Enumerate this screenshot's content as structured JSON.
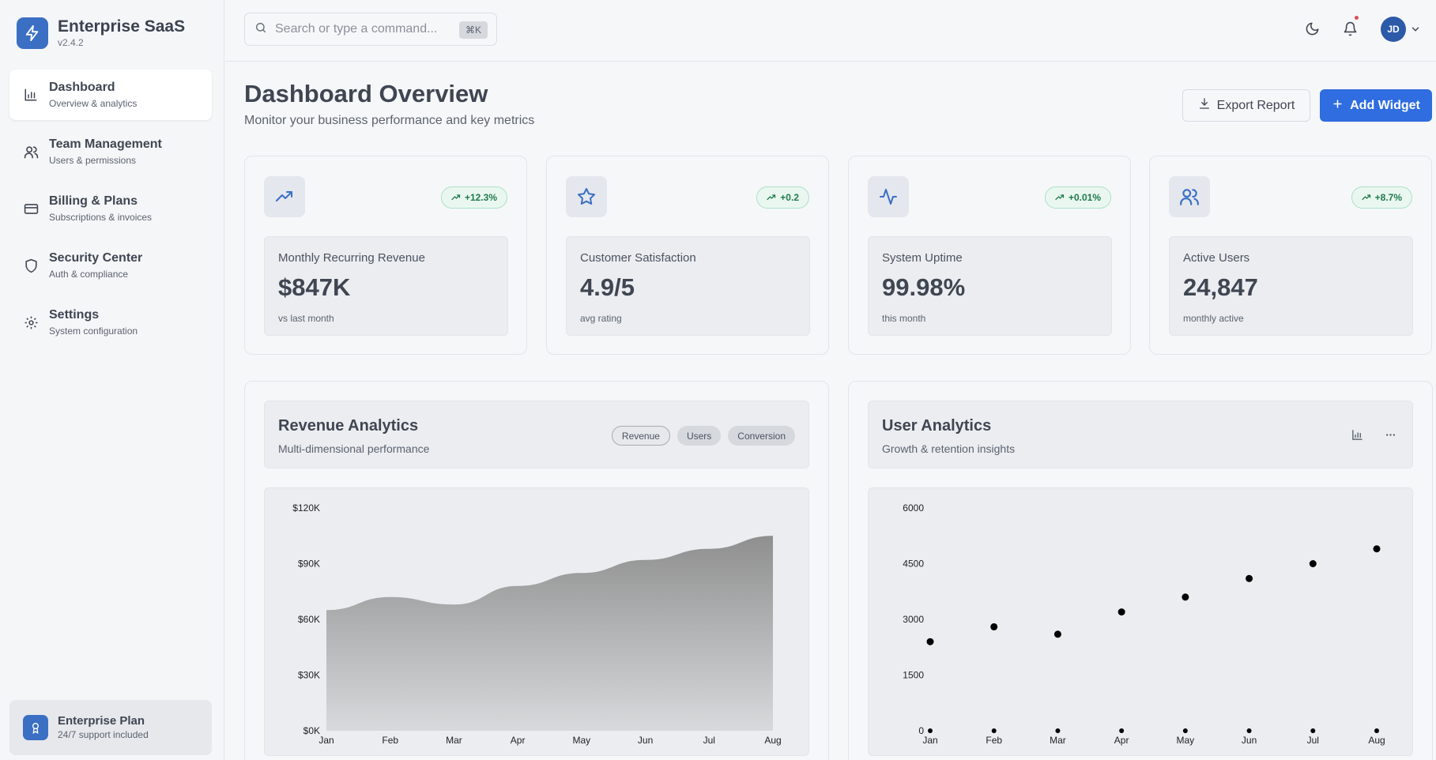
{
  "brand": {
    "name": "Enterprise SaaS",
    "version": "v2.4.2"
  },
  "sidebar": {
    "items": [
      {
        "label": "Dashboard",
        "sub": "Overview & analytics",
        "icon": "bar-chart-icon",
        "active": true
      },
      {
        "label": "Team Management",
        "sub": "Users & permissions",
        "icon": "users-icon"
      },
      {
        "label": "Billing & Plans",
        "sub": "Subscriptions & invoices",
        "icon": "credit-card-icon"
      },
      {
        "label": "Security Center",
        "sub": "Auth & compliance",
        "icon": "shield-icon"
      },
      {
        "label": "Settings",
        "sub": "System configuration",
        "icon": "gear-icon"
      }
    ],
    "plan": {
      "title": "Enterprise Plan",
      "sub": "24/7 support included"
    }
  },
  "topbar": {
    "search_placeholder": "Search or type a command...",
    "shortcut": "⌘K",
    "avatar_initials": "JD"
  },
  "header": {
    "title": "Dashboard Overview",
    "subtitle": "Monitor your business performance and key metrics",
    "export_label": "Export Report",
    "add_label": "Add Widget"
  },
  "metrics": [
    {
      "label": "Monthly Recurring Revenue",
      "value": "$847K",
      "note": "vs last month",
      "change": "+12.3%",
      "icon": "trending-up-icon"
    },
    {
      "label": "Customer Satisfaction",
      "value": "4.9/5",
      "note": "avg rating",
      "change": "+0.2",
      "icon": "star-icon"
    },
    {
      "label": "System Uptime",
      "value": "99.98%",
      "note": "this month",
      "change": "+0.01%",
      "icon": "activity-icon"
    },
    {
      "label": "Active Users",
      "value": "24,847",
      "note": "monthly active",
      "change": "+8.7%",
      "icon": "users-icon"
    }
  ],
  "revenue_panel": {
    "title": "Revenue Analytics",
    "subtitle": "Multi-dimensional performance",
    "pills": [
      "Revenue",
      "Users",
      "Conversion"
    ]
  },
  "users_panel": {
    "title": "User Analytics",
    "subtitle": "Growth & retention insights"
  },
  "chart_data": [
    {
      "type": "area",
      "categories": [
        "Jan",
        "Feb",
        "Mar",
        "Apr",
        "May",
        "Jun",
        "Jul",
        "Aug"
      ],
      "values": [
        65000,
        72000,
        68000,
        78000,
        85000,
        92000,
        98000,
        105000
      ],
      "ylim": [
        0,
        120000
      ],
      "yticks": [
        "$0K",
        "$30K",
        "$60K",
        "$90K",
        "$120K"
      ],
      "color": "#8a8a8a"
    },
    {
      "type": "scatter",
      "categories": [
        "Jan",
        "Feb",
        "Mar",
        "Apr",
        "May",
        "Jun",
        "Jul",
        "Aug"
      ],
      "series": [
        {
          "values": [
            2400,
            2800,
            2600,
            3200,
            3600,
            4100,
            4500,
            4900
          ]
        },
        {
          "values": [
            0,
            0,
            0,
            0,
            0,
            0,
            0,
            0
          ]
        }
      ],
      "ylim": [
        0,
        6000
      ],
      "yticks": [
        "0",
        "1500",
        "3000",
        "4500",
        "6000"
      ],
      "color": "#000000"
    }
  ]
}
